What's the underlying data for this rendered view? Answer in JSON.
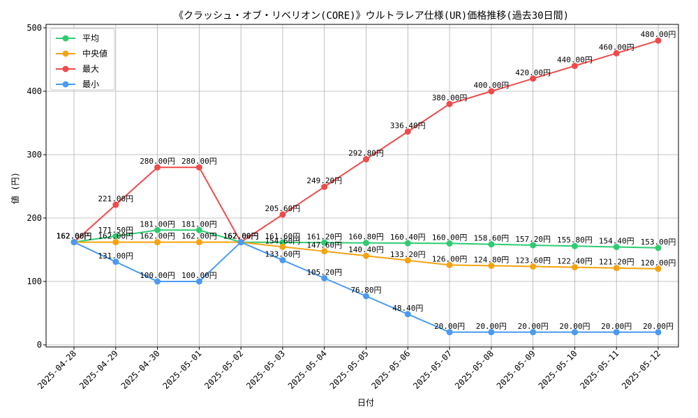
{
  "chart_data": {
    "type": "line",
    "title": "《クラッシュ・オブ・リベリオン(CORE)》ウルトラレア仕様(UR)価格推移(過去30日間)",
    "xlabel": "日付",
    "ylabel": "値 (円)",
    "ylim": [
      0,
      500
    ],
    "yticks": [
      0,
      100,
      200,
      300,
      400,
      500
    ],
    "grid": true,
    "legend_position": "top-left",
    "value_suffix": "円",
    "categories": [
      "2025-04-28",
      "2025-04-29",
      "2025-04-30",
      "2025-05-01",
      "2025-05-02",
      "2025-05-03",
      "2025-05-04",
      "2025-05-05",
      "2025-05-06",
      "2025-05-07",
      "2025-05-08",
      "2025-05-09",
      "2025-05-10",
      "2025-05-11",
      "2025-05-12"
    ],
    "series": [
      {
        "name": "平均",
        "color": "#2ecc71",
        "values": [
          162.0,
          171.5,
          181.0,
          181.0,
          162.0,
          161.6,
          161.2,
          160.8,
          160.4,
          160.0,
          158.6,
          157.2,
          155.8,
          154.4,
          153.0
        ]
      },
      {
        "name": "中央値",
        "color": "#f5a30f",
        "values": [
          162.0,
          162.0,
          162.0,
          162.0,
          162.0,
          154.6,
          147.6,
          140.4,
          133.2,
          126.0,
          124.8,
          123.6,
          122.4,
          121.2,
          120.0
        ]
      },
      {
        "name": "最大",
        "color": "#f04a4a",
        "values": [
          162.0,
          221.0,
          280.0,
          280.0,
          162.0,
          205.6,
          249.2,
          292.8,
          336.4,
          380.0,
          400.0,
          420.0,
          440.0,
          460.0,
          480.0
        ]
      },
      {
        "name": "最小",
        "color": "#4a9af0",
        "values": [
          162.0,
          131.0,
          100.0,
          100.0,
          162.0,
          133.6,
          105.2,
          76.8,
          48.4,
          20.0,
          20.0,
          20.0,
          20.0,
          20.0,
          20.0
        ]
      }
    ]
  }
}
